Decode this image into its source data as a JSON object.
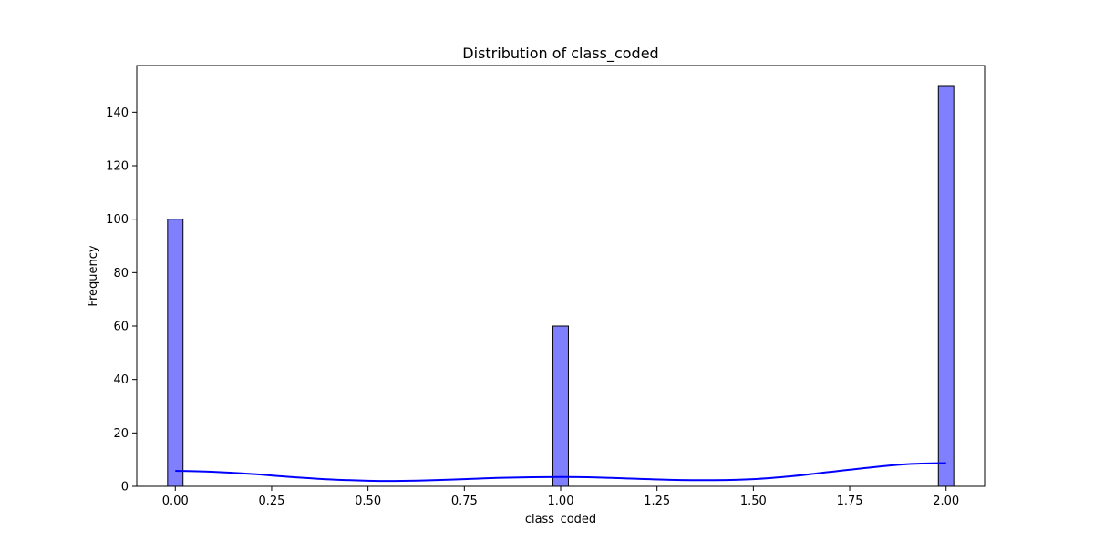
{
  "chart_data": {
    "type": "bar",
    "title": "Distribution of class_coded",
    "xlabel": "class_coded",
    "ylabel": "Frequency",
    "xlim": [
      -0.1,
      2.1
    ],
    "ylim": [
      0,
      157.5
    ],
    "x_ticks": [
      "0.00",
      "0.25",
      "0.50",
      "0.75",
      "1.00",
      "1.25",
      "1.50",
      "1.75",
      "2.00"
    ],
    "y_ticks": [
      "0",
      "20",
      "40",
      "60",
      "80",
      "100",
      "120",
      "140"
    ],
    "bin_width": 0.04,
    "bars": [
      {
        "x": 0.0,
        "value": 100
      },
      {
        "x": 1.0,
        "value": 60
      },
      {
        "x": 2.0,
        "value": 150
      }
    ],
    "kde": {
      "x": [
        0.0,
        0.1,
        0.2,
        0.3,
        0.4,
        0.5,
        0.57,
        0.65,
        0.75,
        0.85,
        1.0,
        1.1,
        1.2,
        1.3,
        1.4,
        1.5,
        1.6,
        1.7,
        1.8,
        1.9,
        2.0
      ],
      "y": [
        5.8,
        5.4,
        4.6,
        3.5,
        2.6,
        2.1,
        2.0,
        2.2,
        2.7,
        3.2,
        3.5,
        3.3,
        2.8,
        2.4,
        2.3,
        2.7,
        3.8,
        5.4,
        7.0,
        8.3,
        8.7
      ]
    },
    "colors": {
      "bar_fill": "#8080ff",
      "bar_edge": "#000000",
      "kde_line": "#0000ff"
    },
    "grid": false,
    "legend": "none"
  }
}
